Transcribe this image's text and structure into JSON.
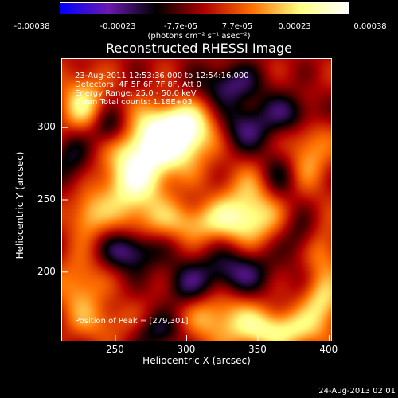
{
  "colorbar": {
    "ticks": [
      "-0.00038",
      "-0.00023",
      "-7.7e-05",
      "7.7e-05",
      "0.00023",
      "0.00038"
    ],
    "units": "(photons cm⁻² s⁻¹ asec⁻²)"
  },
  "annotations": {
    "time_range": "23-Aug-2011 12:53:36.000 to 12:54:16.000",
    "detectors": "Detectors: 4F 5F 6F 7F 8F, Att 0",
    "energy": "Energy Range: 25.0 - 50.0 keV",
    "method": "Clean    Total counts: 1.18E+03",
    "peak": "Position of Peak = [279,301]"
  },
  "footer": {
    "date": "24-Aug-2013 02:01"
  },
  "chart_data": {
    "type": "heatmap",
    "title": "Reconstructed RHESSI Image",
    "xlabel": "Heliocentric X (arcsec)",
    "ylabel": "Heliocentric Y (arcsec)",
    "xlim": [
      212,
      402
    ],
    "ylim": [
      152,
      348
    ],
    "xticks": [
      "250",
      "300",
      "350",
      "400"
    ],
    "yticks": [
      "200",
      "250",
      "300"
    ],
    "clim": [
      -0.00038,
      0.00038
    ],
    "colormap": [
      "#0000ff",
      "#6a1ab0",
      "#000000",
      "#b00000",
      "#ff7000",
      "#ffff80",
      "#ffffff"
    ],
    "blobs": [
      {
        "x": 283,
        "y": 290,
        "sx": 20,
        "sy": 16,
        "v": 0.00034
      },
      {
        "x": 262,
        "y": 262,
        "sx": 16,
        "sy": 20,
        "v": 0.0003
      },
      {
        "x": 298,
        "y": 300,
        "sx": 16,
        "sy": 12,
        "v": 0.00026
      },
      {
        "x": 227,
        "y": 315,
        "sx": 12,
        "sy": 16,
        "v": 0.00024
      },
      {
        "x": 230,
        "y": 240,
        "sx": 10,
        "sy": 12,
        "v": 0.00018
      },
      {
        "x": 310,
        "y": 235,
        "sx": 28,
        "sy": 10,
        "v": 0.0002
      },
      {
        "x": 345,
        "y": 245,
        "sx": 16,
        "sy": 18,
        "v": 0.00024
      },
      {
        "x": 385,
        "y": 285,
        "sx": 12,
        "sy": 20,
        "v": 0.00018
      },
      {
        "x": 395,
        "y": 215,
        "sx": 10,
        "sy": 14,
        "v": 0.00016
      },
      {
        "x": 320,
        "y": 170,
        "sx": 22,
        "sy": 14,
        "v": 0.0002
      },
      {
        "x": 365,
        "y": 160,
        "sx": 22,
        "sy": 10,
        "v": 0.00026
      },
      {
        "x": 395,
        "y": 180,
        "sx": 10,
        "sy": 12,
        "v": 0.00022
      },
      {
        "x": 225,
        "y": 190,
        "sx": 12,
        "sy": 16,
        "v": 0.00018
      },
      {
        "x": 245,
        "y": 165,
        "sx": 18,
        "sy": 10,
        "v": 0.00012
      },
      {
        "x": 245,
        "y": 300,
        "sx": 10,
        "sy": 10,
        "v": -0.00022
      },
      {
        "x": 260,
        "y": 215,
        "sx": 14,
        "sy": 10,
        "v": -0.00024
      },
      {
        "x": 340,
        "y": 300,
        "sx": 14,
        "sy": 12,
        "v": -0.0002
      },
      {
        "x": 375,
        "y": 310,
        "sx": 14,
        "sy": 10,
        "v": -0.0002
      },
      {
        "x": 365,
        "y": 265,
        "sx": 10,
        "sy": 14,
        "v": -0.00016
      },
      {
        "x": 335,
        "y": 200,
        "sx": 18,
        "sy": 12,
        "v": -0.00022
      },
      {
        "x": 300,
        "y": 190,
        "sx": 12,
        "sy": 12,
        "v": -0.00018
      },
      {
        "x": 380,
        "y": 225,
        "sx": 10,
        "sy": 12,
        "v": -0.00014
      },
      {
        "x": 220,
        "y": 280,
        "sx": 10,
        "sy": 14,
        "v": -0.00016
      },
      {
        "x": 280,
        "y": 160,
        "sx": 14,
        "sy": 10,
        "v": -0.00018
      },
      {
        "x": 330,
        "y": 330,
        "sx": 16,
        "sy": 10,
        "v": -0.0002
      }
    ]
  }
}
